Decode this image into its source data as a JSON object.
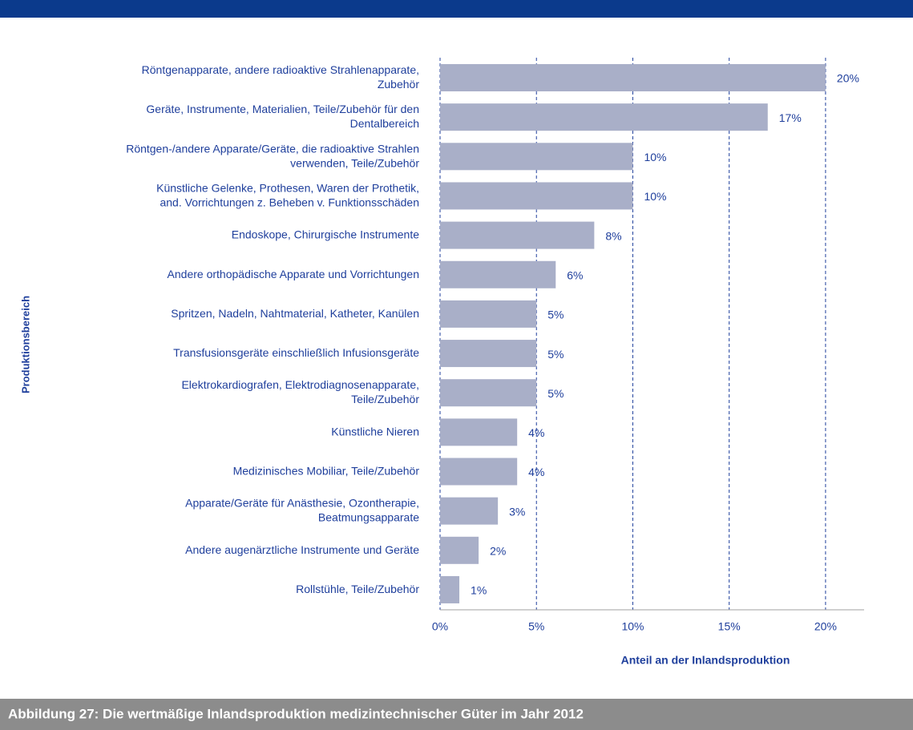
{
  "chart_data": {
    "type": "bar",
    "orientation": "horizontal",
    "categories": [
      "Röntgenapparate, andere radioaktive Strahlenapparate,\nZubehör",
      "Geräte, Instrumente, Materialien, Teile/Zubehör für den\nDentalbereich",
      "Röntgen-/andere Apparate/Geräte, die radioaktive Strahlen\nverwenden, Teile/Zubehör",
      "Künstliche Gelenke, Prothesen, Waren der Prothetik,\nand. Vorrichtungen z. Beheben v. Funktionsschäden",
      "Endoskope, Chirurgische Instrumente",
      "Andere orthopädische Apparate und Vorrichtungen",
      "Spritzen, Nadeln, Nahtmaterial, Katheter, Kanülen",
      "Transfusionsgeräte einschließlich Infusionsgeräte",
      "Elektrokardiografen, Elektrodiagnosenapparate,\nTeile/Zubehör",
      "Künstliche Nieren",
      "Medizinisches Mobiliar, Teile/Zubehör",
      "Apparate/Geräte für Anästhesie, Ozontherapie,\nBeatmungsapparate",
      "Andere augenärztliche Instrumente und Geräte",
      "Rollstühle, Teile/Zubehör"
    ],
    "values": [
      20,
      17,
      10,
      10,
      8,
      6,
      5,
      5,
      5,
      4,
      4,
      3,
      2,
      1
    ],
    "value_labels": [
      "20%",
      "17%",
      "10%",
      "10%",
      "8%",
      "6%",
      "5%",
      "5%",
      "5%",
      "4%",
      "4%",
      "3%",
      "2%",
      "1%"
    ],
    "color": "#a9afc8",
    "xlim": [
      0,
      22
    ],
    "xticks": [
      {
        "value": 0,
        "label": "0%"
      },
      {
        "value": 5,
        "label": "5%"
      },
      {
        "value": 10,
        "label": "10%"
      },
      {
        "value": 15,
        "label": "15%"
      },
      {
        "value": 20,
        "label": "20%"
      }
    ],
    "grid": true,
    "x_label": "Anteil an der Inlandsproduktion",
    "y_label": "Produktionsbereich",
    "caption": "Abbildung 27: Die wertmäßige Inlandsproduktion medizintechnischer Güter im Jahr 2012"
  }
}
